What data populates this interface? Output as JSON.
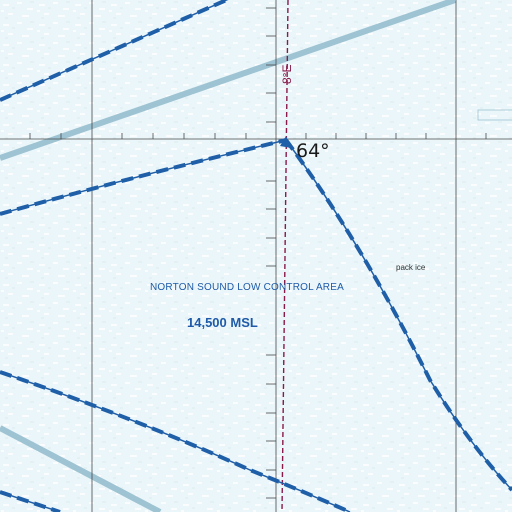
{
  "map": {
    "background": "#eaf6fa",
    "airspace_name": "NORTON SOUND LOW CONTROL AREA",
    "airspace_floor": "14,500 MSL",
    "latitude_label": "64°",
    "magnetic_variation": "8°E",
    "feature_label": "pack ice",
    "colors": {
      "airspace_line": "#1f5fa8",
      "airway": "#9ec3d2",
      "graticule": "#4a4a4a",
      "isogonic": "#8a1a4a"
    }
  }
}
